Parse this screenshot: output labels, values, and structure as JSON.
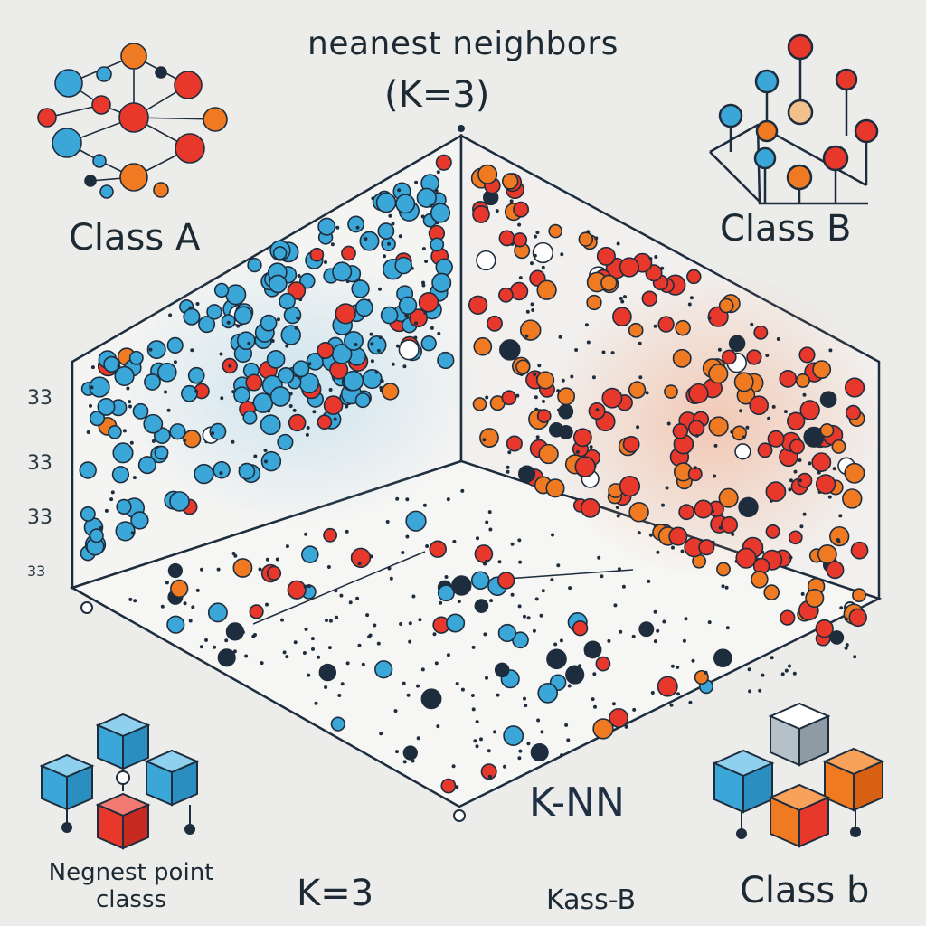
{
  "title": "neanest neighbors",
  "subtitle": "(K=3)",
  "class_a_label": "Class A",
  "class_b_label": "Class B",
  "side_ticks": [
    "33",
    "33",
    "33",
    "33"
  ],
  "knn_label": "K-NN",
  "k_value_label": "K=3",
  "kass_label": "Kass-B",
  "class_b_lower_label": "Class b",
  "nearest_point_label_line1": "Negnest point",
  "nearest_point_label_line2": "classs",
  "colors": {
    "blue": "#3aa7d8",
    "red": "#e8382c",
    "orange": "#f07a22",
    "dark": "#1e2d3d",
    "background": "#ececea"
  }
}
